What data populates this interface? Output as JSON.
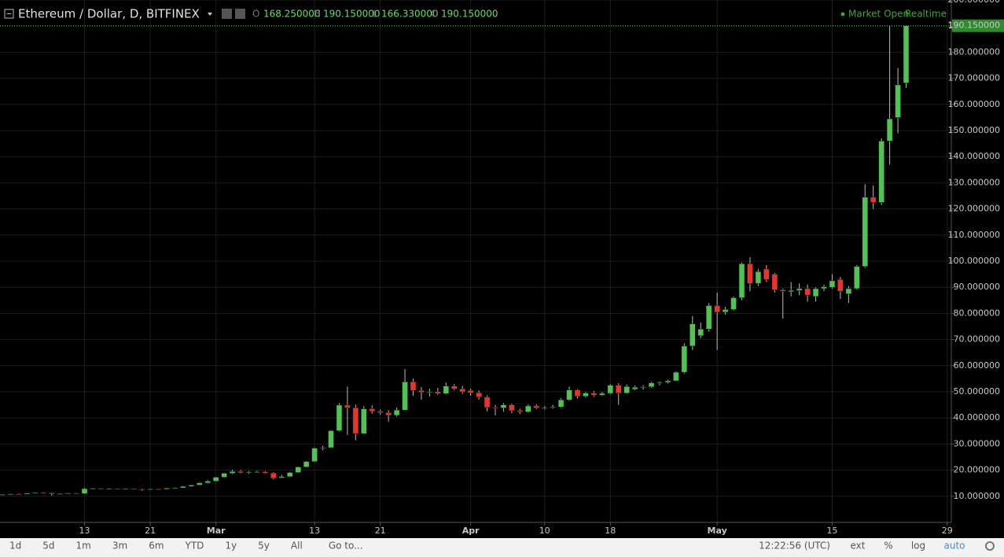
{
  "header": {
    "title": "Ethereum / Dollar, D, BITFINEX",
    "o_label": "O",
    "open": "168.250000",
    "h_label": "H",
    "high": "190.150000",
    "l_label": "L",
    "low": "166.330000",
    "c_label": "C",
    "close": "190.150000",
    "status": "Market Open",
    "feed": "Realtime"
  },
  "toolbar": {
    "ranges": [
      "1d",
      "5d",
      "1m",
      "3m",
      "6m",
      "YTD",
      "1y",
      "5y",
      "All"
    ],
    "goto": "Go to...",
    "time": "12:22:56 (UTC)",
    "options": [
      "ext",
      "%",
      "log",
      "auto"
    ]
  },
  "chart_data": {
    "type": "candlestick",
    "up_color": "#53c153",
    "down_color": "#e5362c",
    "last_price_label": "190.150000",
    "ylim": [
      0,
      200
    ],
    "yticks": [
      {
        "value": 10,
        "label": "10.000000"
      },
      {
        "value": 20,
        "label": "20.000000"
      },
      {
        "value": 30,
        "label": "30.000000"
      },
      {
        "value": 40,
        "label": "40.000000"
      },
      {
        "value": 50,
        "label": "50.000000"
      },
      {
        "value": 60,
        "label": "60.000000"
      },
      {
        "value": 70,
        "label": "70.000000"
      },
      {
        "value": 80,
        "label": "80.000000"
      },
      {
        "value": 90,
        "label": "90.000000"
      },
      {
        "value": 100,
        "label": "100.000000"
      },
      {
        "value": 110,
        "label": "110.000000"
      },
      {
        "value": 120,
        "label": "120.000000"
      },
      {
        "value": 130,
        "label": "130.000000"
      },
      {
        "value": 140,
        "label": "140.000000"
      },
      {
        "value": 150,
        "label": "150.000000"
      },
      {
        "value": 160,
        "label": "160.000000"
      },
      {
        "value": 170,
        "label": "170.000000"
      },
      {
        "value": 180,
        "label": "180.000000"
      },
      {
        "value": 190,
        "label": "190.000000"
      },
      {
        "value": 200,
        "label": "200.000000"
      }
    ],
    "xticks": [
      {
        "value": "Feb 13",
        "label": "13"
      },
      {
        "value": "Feb 21",
        "label": "21"
      },
      {
        "value": "Mar 1",
        "label": "Mar"
      },
      {
        "value": "Mar 13",
        "label": "13"
      },
      {
        "value": "Mar 21",
        "label": "21"
      },
      {
        "value": "Apr 1",
        "label": "Apr"
      },
      {
        "value": "Apr 10",
        "label": "10"
      },
      {
        "value": "Apr 18",
        "label": "18"
      },
      {
        "value": "May 1",
        "label": "May"
      },
      {
        "value": "May 15",
        "label": "15"
      },
      {
        "value": "May 29",
        "label": "29"
      }
    ],
    "candles": [
      {
        "x": "Feb 3",
        "open": 10.6,
        "high": 10.9,
        "low": 10.4,
        "close": 10.7
      },
      {
        "x": "Feb 4",
        "open": 10.7,
        "high": 11.0,
        "low": 10.5,
        "close": 10.9
      },
      {
        "x": "Feb 5",
        "open": 10.9,
        "high": 11.1,
        "low": 10.6,
        "close": 10.8
      },
      {
        "x": "Feb 6",
        "open": 10.8,
        "high": 11.3,
        "low": 10.7,
        "close": 11.2
      },
      {
        "x": "Feb 7",
        "open": 11.2,
        "high": 11.5,
        "low": 11.0,
        "close": 11.4
      },
      {
        "x": "Feb 8",
        "open": 11.4,
        "high": 11.6,
        "low": 11.1,
        "close": 11.3
      },
      {
        "x": "Feb 9",
        "open": 11.3,
        "high": 11.4,
        "low": 10.3,
        "close": 10.9
      },
      {
        "x": "Feb 10",
        "open": 10.9,
        "high": 11.2,
        "low": 10.8,
        "close": 11.0
      },
      {
        "x": "Feb 11",
        "open": 11.0,
        "high": 11.3,
        "low": 10.9,
        "close": 11.2
      },
      {
        "x": "Feb 12",
        "open": 11.2,
        "high": 11.3,
        "low": 10.9,
        "close": 11.0
      },
      {
        "x": "Feb 13",
        "open": 11.0,
        "high": 13.2,
        "low": 10.9,
        "close": 12.9
      },
      {
        "x": "Feb 14",
        "open": 12.9,
        "high": 13.2,
        "low": 12.6,
        "close": 13.0
      },
      {
        "x": "Feb 15",
        "open": 13.0,
        "high": 13.1,
        "low": 12.7,
        "close": 12.9
      },
      {
        "x": "Feb 16",
        "open": 12.9,
        "high": 13.1,
        "low": 12.7,
        "close": 12.9
      },
      {
        "x": "Feb 17",
        "open": 12.9,
        "high": 13.0,
        "low": 12.6,
        "close": 12.8
      },
      {
        "x": "Feb 18",
        "open": 12.8,
        "high": 13.0,
        "low": 12.6,
        "close": 12.9
      },
      {
        "x": "Feb 19",
        "open": 12.9,
        "high": 13.0,
        "low": 12.5,
        "close": 12.7
      },
      {
        "x": "Feb 20",
        "open": 12.7,
        "high": 12.9,
        "low": 12.1,
        "close": 12.5
      },
      {
        "x": "Feb 21",
        "open": 12.5,
        "high": 12.9,
        "low": 12.4,
        "close": 12.8
      },
      {
        "x": "Feb 22",
        "open": 12.8,
        "high": 12.9,
        "low": 12.5,
        "close": 12.7
      },
      {
        "x": "Feb 23",
        "open": 12.7,
        "high": 13.3,
        "low": 12.6,
        "close": 13.1
      },
      {
        "x": "Feb 24",
        "open": 13.1,
        "high": 13.4,
        "low": 12.9,
        "close": 13.2
      },
      {
        "x": "Feb 25",
        "open": 13.2,
        "high": 14.0,
        "low": 13.1,
        "close": 13.8
      },
      {
        "x": "Feb 26",
        "open": 13.8,
        "high": 14.5,
        "low": 13.6,
        "close": 14.3
      },
      {
        "x": "Feb 27",
        "open": 14.3,
        "high": 15.3,
        "low": 14.2,
        "close": 15.1
      },
      {
        "x": "Feb 28",
        "open": 15.1,
        "high": 16.2,
        "low": 14.9,
        "close": 15.8
      },
      {
        "x": "Mar 1",
        "open": 15.8,
        "high": 17.5,
        "low": 15.6,
        "close": 17.3
      },
      {
        "x": "Mar 2",
        "open": 17.3,
        "high": 19.0,
        "low": 17.1,
        "close": 18.8
      },
      {
        "x": "Mar 3",
        "open": 18.8,
        "high": 20.2,
        "low": 18.5,
        "close": 19.5
      },
      {
        "x": "Mar 4",
        "open": 19.5,
        "high": 20.0,
        "low": 18.7,
        "close": 19.0
      },
      {
        "x": "Mar 5",
        "open": 19.0,
        "high": 19.6,
        "low": 18.6,
        "close": 19.3
      },
      {
        "x": "Mar 6",
        "open": 19.3,
        "high": 19.8,
        "low": 19.0,
        "close": 19.4
      },
      {
        "x": "Mar 7",
        "open": 19.4,
        "high": 19.7,
        "low": 18.6,
        "close": 18.9
      },
      {
        "x": "Mar 8",
        "open": 18.9,
        "high": 19.2,
        "low": 16.4,
        "close": 16.9
      },
      {
        "x": "Mar 9",
        "open": 17.0,
        "high": 18.2,
        "low": 16.9,
        "close": 17.5
      },
      {
        "x": "Mar 10",
        "open": 17.5,
        "high": 19.3,
        "low": 17.4,
        "close": 19.1
      },
      {
        "x": "Mar 11",
        "open": 19.1,
        "high": 21.4,
        "low": 19.0,
        "close": 21.2
      },
      {
        "x": "Mar 12",
        "open": 21.2,
        "high": 23.5,
        "low": 21.0,
        "close": 23.3
      },
      {
        "x": "Mar 13",
        "open": 23.3,
        "high": 28.7,
        "low": 23.1,
        "close": 28.4
      },
      {
        "x": "Mar 14",
        "open": 28.4,
        "high": 29.3,
        "low": 27.6,
        "close": 28.6
      },
      {
        "x": "Mar 15",
        "open": 28.6,
        "high": 35.3,
        "low": 28.4,
        "close": 35.1
      },
      {
        "x": "Mar 16",
        "open": 35.1,
        "high": 45.7,
        "low": 34.8,
        "close": 44.9
      },
      {
        "x": "Mar 17",
        "open": 44.9,
        "high": 52.0,
        "low": 33.5,
        "close": 43.9
      },
      {
        "x": "Mar 18",
        "open": 43.9,
        "high": 45.1,
        "low": 31.5,
        "close": 34.0
      },
      {
        "x": "Mar 19",
        "open": 34.0,
        "high": 44.5,
        "low": 33.8,
        "close": 43.5
      },
      {
        "x": "Mar 20",
        "open": 43.5,
        "high": 44.8,
        "low": 41.6,
        "close": 42.5
      },
      {
        "x": "Mar 21",
        "open": 42.5,
        "high": 43.2,
        "low": 41.2,
        "close": 42.0
      },
      {
        "x": "Mar 22",
        "open": 42.0,
        "high": 43.0,
        "low": 38.5,
        "close": 41.0
      },
      {
        "x": "Mar 23",
        "open": 41.0,
        "high": 44.0,
        "low": 40.5,
        "close": 43.0
      },
      {
        "x": "Mar 24",
        "open": 43.0,
        "high": 58.7,
        "low": 42.8,
        "close": 53.8
      },
      {
        "x": "Mar 25",
        "open": 53.8,
        "high": 55.0,
        "low": 48.5,
        "close": 50.5
      },
      {
        "x": "Mar 26",
        "open": 50.5,
        "high": 51.8,
        "low": 47.0,
        "close": 49.8
      },
      {
        "x": "Mar 27",
        "open": 49.8,
        "high": 51.2,
        "low": 48.2,
        "close": 50.0
      },
      {
        "x": "Mar 28",
        "open": 50.0,
        "high": 51.5,
        "low": 48.8,
        "close": 49.3
      },
      {
        "x": "Mar 29",
        "open": 49.3,
        "high": 53.5,
        "low": 49.0,
        "close": 52.2
      },
      {
        "x": "Mar 30",
        "open": 52.2,
        "high": 53.0,
        "low": 50.5,
        "close": 51.1
      },
      {
        "x": "Mar 31",
        "open": 51.1,
        "high": 52.3,
        "low": 49.2,
        "close": 50.0
      },
      {
        "x": "Apr 1",
        "open": 50.5,
        "high": 51.2,
        "low": 48.5,
        "close": 49.6
      },
      {
        "x": "Apr 2",
        "open": 49.6,
        "high": 50.5,
        "low": 47.0,
        "close": 48.0
      },
      {
        "x": "Apr 3",
        "open": 48.0,
        "high": 48.7,
        "low": 42.5,
        "close": 44.0
      },
      {
        "x": "Apr 4",
        "open": 44.0,
        "high": 45.0,
        "low": 41.0,
        "close": 43.8
      },
      {
        "x": "Apr 5",
        "open": 43.8,
        "high": 45.7,
        "low": 42.4,
        "close": 45.0
      },
      {
        "x": "Apr 6",
        "open": 45.0,
        "high": 45.5,
        "low": 41.8,
        "close": 42.8
      },
      {
        "x": "Apr 7",
        "open": 42.8,
        "high": 43.6,
        "low": 41.5,
        "close": 42.3
      },
      {
        "x": "Apr 8",
        "open": 42.3,
        "high": 45.2,
        "low": 42.0,
        "close": 44.6
      },
      {
        "x": "Apr 9",
        "open": 44.6,
        "high": 45.2,
        "low": 43.4,
        "close": 43.8
      },
      {
        "x": "Apr 10",
        "open": 43.8,
        "high": 44.5,
        "low": 43.2,
        "close": 43.9
      },
      {
        "x": "Apr 11",
        "open": 43.9,
        "high": 45.0,
        "low": 43.5,
        "close": 44.2
      },
      {
        "x": "Apr 12",
        "open": 44.2,
        "high": 47.5,
        "low": 43.8,
        "close": 46.9
      },
      {
        "x": "Apr 13",
        "open": 46.9,
        "high": 52.0,
        "low": 46.5,
        "close": 50.7
      },
      {
        "x": "Apr 14",
        "open": 50.7,
        "high": 51.0,
        "low": 47.5,
        "close": 48.3
      },
      {
        "x": "Apr 15",
        "open": 48.3,
        "high": 50.0,
        "low": 47.8,
        "close": 49.5
      },
      {
        "x": "Apr 16",
        "open": 49.5,
        "high": 50.2,
        "low": 48.0,
        "close": 48.7
      },
      {
        "x": "Apr 17",
        "open": 48.7,
        "high": 50.0,
        "low": 48.4,
        "close": 49.4
      },
      {
        "x": "Apr 18",
        "open": 49.4,
        "high": 53.0,
        "low": 49.0,
        "close": 52.5
      },
      {
        "x": "Apr 19",
        "open": 52.5,
        "high": 53.3,
        "low": 45.0,
        "close": 49.5
      },
      {
        "x": "Apr 20",
        "open": 49.5,
        "high": 52.8,
        "low": 49.2,
        "close": 52.0
      },
      {
        "x": "Apr 21",
        "open": 51.0,
        "high": 52.4,
        "low": 50.6,
        "close": 51.7
      },
      {
        "x": "Apr 22",
        "open": 51.7,
        "high": 52.5,
        "low": 50.8,
        "close": 51.9
      },
      {
        "x": "Apr 23",
        "open": 51.9,
        "high": 53.8,
        "low": 51.5,
        "close": 53.4
      },
      {
        "x": "Apr 24",
        "open": 53.4,
        "high": 54.0,
        "low": 52.5,
        "close": 53.6
      },
      {
        "x": "Apr 25",
        "open": 53.6,
        "high": 54.6,
        "low": 53.2,
        "close": 54.2
      },
      {
        "x": "Apr 26",
        "open": 54.2,
        "high": 57.8,
        "low": 54.0,
        "close": 57.5
      },
      {
        "x": "Apr 27",
        "open": 57.5,
        "high": 68.5,
        "low": 57.0,
        "close": 67.5
      },
      {
        "x": "Apr 28",
        "open": 67.5,
        "high": 79.0,
        "low": 66.0,
        "close": 76.0
      },
      {
        "x": "Apr 29",
        "open": 71.5,
        "high": 76.5,
        "low": 70.5,
        "close": 74.0
      },
      {
        "x": "Apr 30",
        "open": 74.0,
        "high": 84.0,
        "low": 73.0,
        "close": 83.0
      },
      {
        "x": "May 1",
        "open": 83.0,
        "high": 88.0,
        "low": 66.0,
        "close": 80.5
      },
      {
        "x": "May 2",
        "open": 80.5,
        "high": 82.5,
        "low": 79.5,
        "close": 81.5
      },
      {
        "x": "May 3",
        "open": 81.5,
        "high": 86.5,
        "low": 81.0,
        "close": 86.0
      },
      {
        "x": "May 4",
        "open": 86.0,
        "high": 99.5,
        "low": 85.0,
        "close": 99.0
      },
      {
        "x": "May 5",
        "open": 99.0,
        "high": 101.5,
        "low": 88.5,
        "close": 91.5
      },
      {
        "x": "May 6",
        "open": 91.5,
        "high": 97.0,
        "low": 90.5,
        "close": 96.0
      },
      {
        "x": "May 7",
        "open": 97.0,
        "high": 98.5,
        "low": 92.0,
        "close": 93.0
      },
      {
        "x": "May 8",
        "open": 95.0,
        "high": 95.5,
        "low": 88.0,
        "close": 89.0
      },
      {
        "x": "May 9",
        "open": 89.0,
        "high": 89.5,
        "low": 78.0,
        "close": 88.5
      },
      {
        "x": "May 10",
        "open": 88.3,
        "high": 92.0,
        "low": 86.5,
        "close": 88.8
      },
      {
        "x": "May 11",
        "open": 88.8,
        "high": 91.5,
        "low": 87.0,
        "close": 89.5
      },
      {
        "x": "May 12",
        "open": 89.5,
        "high": 91.0,
        "low": 84.5,
        "close": 87.0
      },
      {
        "x": "May 13",
        "open": 86.5,
        "high": 90.0,
        "low": 84.5,
        "close": 89.5
      },
      {
        "x": "May 14",
        "open": 89.5,
        "high": 91.0,
        "low": 88.5,
        "close": 90.2
      },
      {
        "x": "May 15",
        "open": 90.0,
        "high": 95.0,
        "low": 89.5,
        "close": 92.5
      },
      {
        "x": "May 16",
        "open": 93.0,
        "high": 94.0,
        "low": 85.5,
        "close": 88.5
      },
      {
        "x": "May 17",
        "open": 87.5,
        "high": 90.5,
        "low": 84.0,
        "close": 89.5
      },
      {
        "x": "May 18",
        "open": 89.5,
        "high": 98.5,
        "low": 89.0,
        "close": 98.0
      },
      {
        "x": "May 19",
        "open": 98.0,
        "high": 129.5,
        "low": 97.5,
        "close": 124.5
      },
      {
        "x": "May 20",
        "open": 124.5,
        "high": 129.0,
        "low": 120.0,
        "close": 122.5
      },
      {
        "x": "May 21",
        "open": 122.5,
        "high": 147.0,
        "low": 121.5,
        "close": 146.0
      },
      {
        "x": "May 22",
        "open": 146.0,
        "high": 190.0,
        "low": 137.0,
        "close": 154.5
      },
      {
        "x": "May 23",
        "open": 155.0,
        "high": 174.0,
        "low": 149.0,
        "close": 167.5
      },
      {
        "x": "May 24",
        "open": 168.25,
        "high": 190.15,
        "low": 166.33,
        "close": 190.15
      }
    ]
  }
}
